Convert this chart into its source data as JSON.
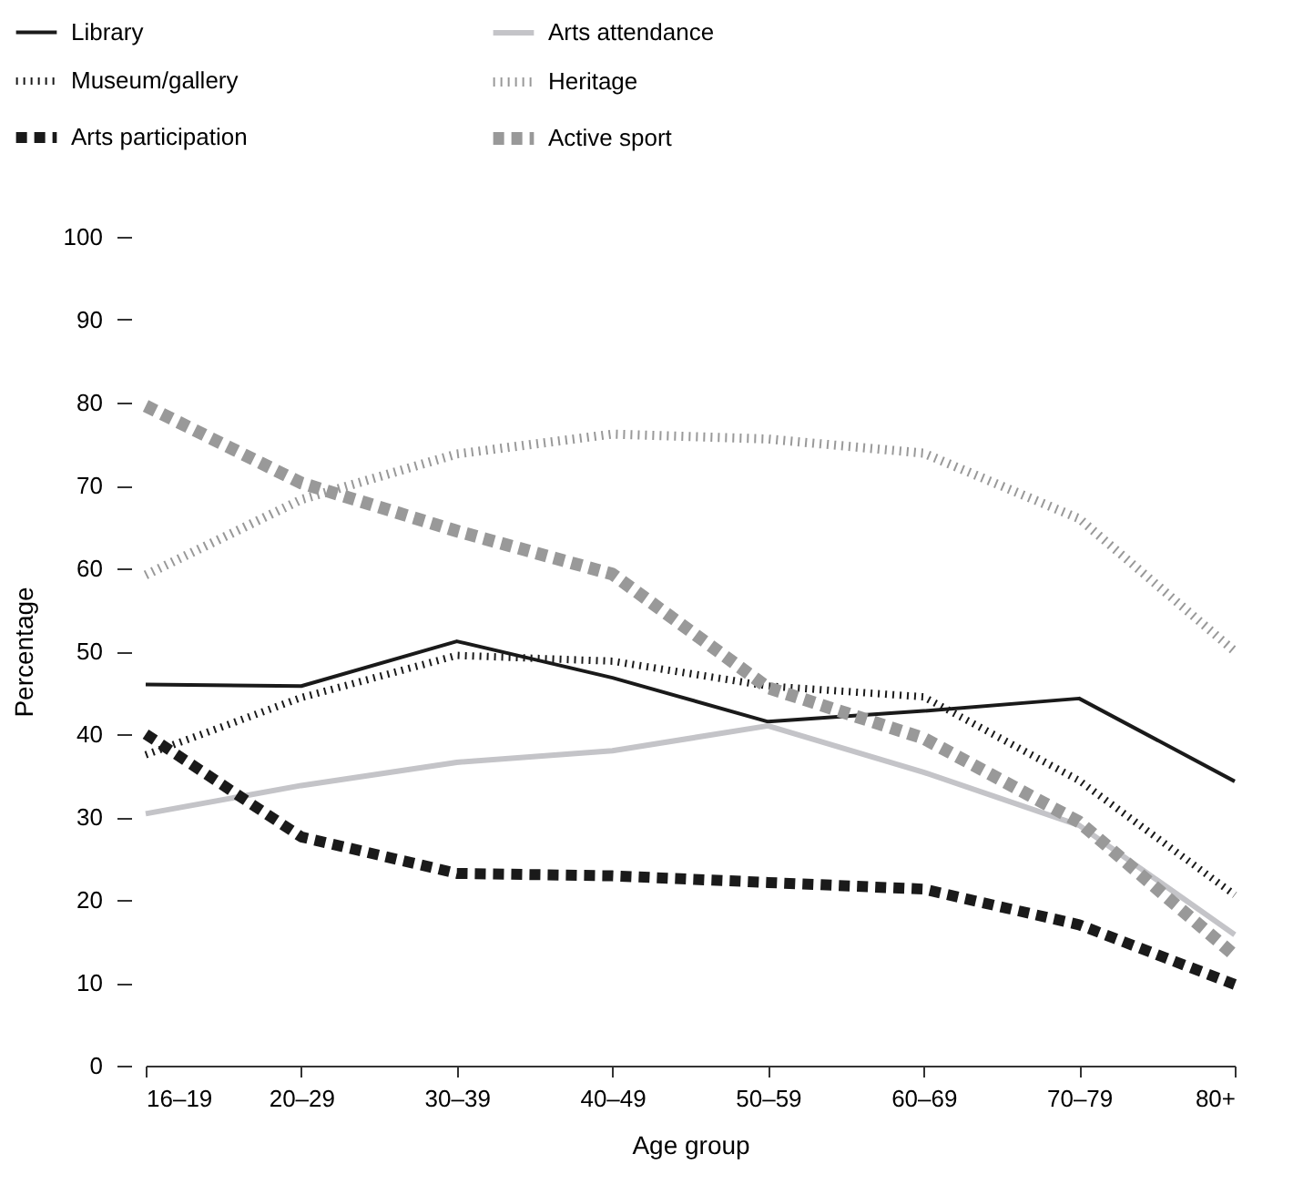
{
  "chart_data": {
    "type": "line",
    "xlabel": "Age group",
    "ylabel": "Percentage",
    "categories": [
      "16–19",
      "20–29",
      "30–39",
      "40–49",
      "50–59",
      "60–69",
      "70–79",
      "80+"
    ],
    "ylim": [
      0,
      100
    ],
    "yticks": [
      0,
      10,
      20,
      30,
      40,
      50,
      60,
      70,
      80,
      90,
      100
    ],
    "grid": false,
    "legend": "top left",
    "marker": "none",
    "series": [
      {
        "name": "Library",
        "color": "#1a1a1a",
        "line_style": "solid",
        "values": [
          46,
          45.8,
          51.2,
          46.8,
          41.5,
          42.8,
          44.3,
          34.3
        ]
      },
      {
        "name": "Arts attendance",
        "color": "#c4c4c8",
        "line_style": "solid",
        "values": [
          30.4,
          33.8,
          36.6,
          38,
          41,
          35.4,
          29,
          15.8
        ]
      },
      {
        "name": "Museum/gallery",
        "color": "#1a1a1a",
        "line_style": "dotted",
        "values": [
          37.5,
          44.4,
          49.5,
          48.8,
          45.8,
          44.5,
          34.4,
          20.6
        ]
      },
      {
        "name": "Heritage",
        "color": "#999999",
        "line_style": "dotted",
        "values": [
          59.2,
          68.3,
          73.8,
          76.2,
          75.6,
          73.9,
          66,
          50
        ]
      },
      {
        "name": "Arts participation",
        "color": "#1a1a1a",
        "line_style": "dashed",
        "values": [
          40,
          27.6,
          23.2,
          22.9,
          22.1,
          21.3,
          17,
          9.8
        ]
      },
      {
        "name": "Active sport",
        "color": "#999999",
        "line_style": "dashed",
        "values": [
          79.6,
          70.3,
          64.5,
          59.3,
          45.6,
          39.5,
          29.4,
          13.3
        ]
      }
    ]
  }
}
